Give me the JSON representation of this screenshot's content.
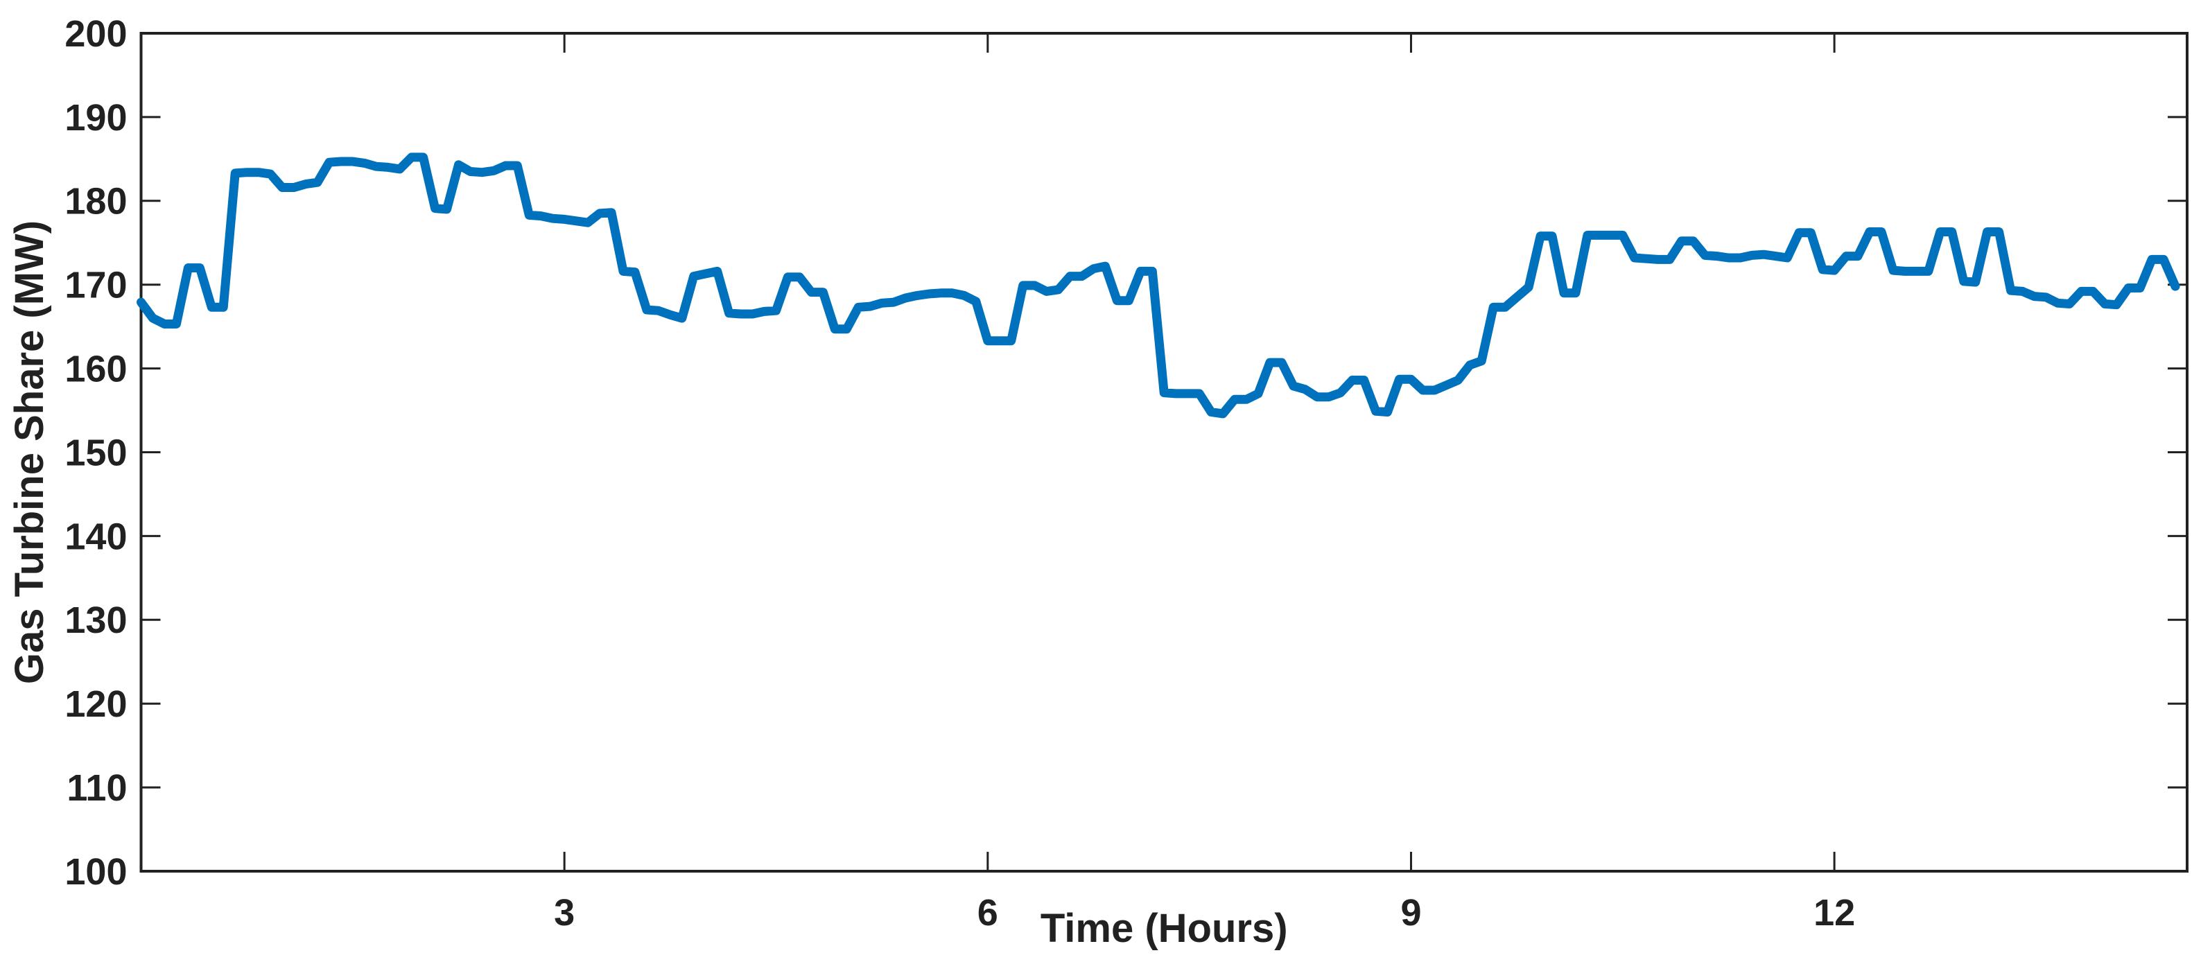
{
  "figure": {
    "background": "#ffffff",
    "axes_color": "#212121",
    "text_color": "#212121",
    "line_color": "#0072BD",
    "line_width": 13,
    "box_stroke_width": 4,
    "tick_stroke_width": 3,
    "tick_length": 28,
    "tick_font_size": 54,
    "label_font_size": 58
  },
  "chart_data": {
    "type": "line",
    "title": "",
    "xlabel": "Time (Hours)",
    "ylabel": "Gas Turbine Share (MW)",
    "xlim": [
      0,
      14.5
    ],
    "ylim": [
      100,
      200
    ],
    "xticks": [
      3,
      6,
      9,
      12
    ],
    "xtick_labels": [
      "3",
      "6",
      "9",
      "12"
    ],
    "yticks": [
      100,
      110,
      120,
      130,
      140,
      150,
      160,
      170,
      180,
      190,
      200
    ],
    "ytick_labels": [
      "100",
      "110",
      "120",
      "130",
      "140",
      "150",
      "160",
      "170",
      "180",
      "190",
      "200"
    ],
    "grid": false,
    "legend": null,
    "box": true,
    "series": [
      {
        "name": "Gas Turbine Share",
        "color": "#0072BD",
        "x_start": 0,
        "dt_hours": 0.0833333,
        "units": "MW",
        "values": [
          167.9,
          166.0,
          165.3,
          165.3,
          172.0,
          172.0,
          167.3,
          167.3,
          183.3,
          183.4,
          183.4,
          183.2,
          181.6,
          181.6,
          182.0,
          182.2,
          184.6,
          184.7,
          184.7,
          184.5,
          184.1,
          184.0,
          183.8,
          185.2,
          185.2,
          179.1,
          179.0,
          184.3,
          183.5,
          183.4,
          183.6,
          184.2,
          184.2,
          178.3,
          178.2,
          177.9,
          177.8,
          177.6,
          177.4,
          178.5,
          178.6,
          171.6,
          171.5,
          167.0,
          166.9,
          166.4,
          166.0,
          171.0,
          171.3,
          171.6,
          166.6,
          166.5,
          166.5,
          166.8,
          166.9,
          170.9,
          170.9,
          169.1,
          169.1,
          164.7,
          164.7,
          167.3,
          167.4,
          167.8,
          167.9,
          168.4,
          168.7,
          168.9,
          169.0,
          169.0,
          168.7,
          168.0,
          163.3,
          163.3,
          163.3,
          169.9,
          169.9,
          169.2,
          169.4,
          171.0,
          171.0,
          171.9,
          172.2,
          168.1,
          168.1,
          171.6,
          171.6,
          157.1,
          157.0,
          157.0,
          157.0,
          154.8,
          154.6,
          156.3,
          156.3,
          157.0,
          160.7,
          160.7,
          157.9,
          157.5,
          156.6,
          156.6,
          157.1,
          158.6,
          158.6,
          154.9,
          154.8,
          158.7,
          158.7,
          157.4,
          157.4,
          158.0,
          158.6,
          160.4,
          160.9,
          167.3,
          167.3,
          168.5,
          169.7,
          175.8,
          175.8,
          169.0,
          169.0,
          175.9,
          175.9,
          175.9,
          175.9,
          173.2,
          173.1,
          173.0,
          173.0,
          175.2,
          175.2,
          173.5,
          173.4,
          173.2,
          173.2,
          173.5,
          173.6,
          173.4,
          173.2,
          176.2,
          176.2,
          171.8,
          171.7,
          173.4,
          173.4,
          176.3,
          176.3,
          171.7,
          171.6,
          171.6,
          171.6,
          176.3,
          176.3,
          170.4,
          170.3,
          176.3,
          176.3,
          169.3,
          169.2,
          168.6,
          168.5,
          167.8,
          167.7,
          169.2,
          169.2,
          167.7,
          167.6,
          169.6,
          169.6,
          173.0,
          173.0,
          169.8
        ]
      }
    ]
  }
}
